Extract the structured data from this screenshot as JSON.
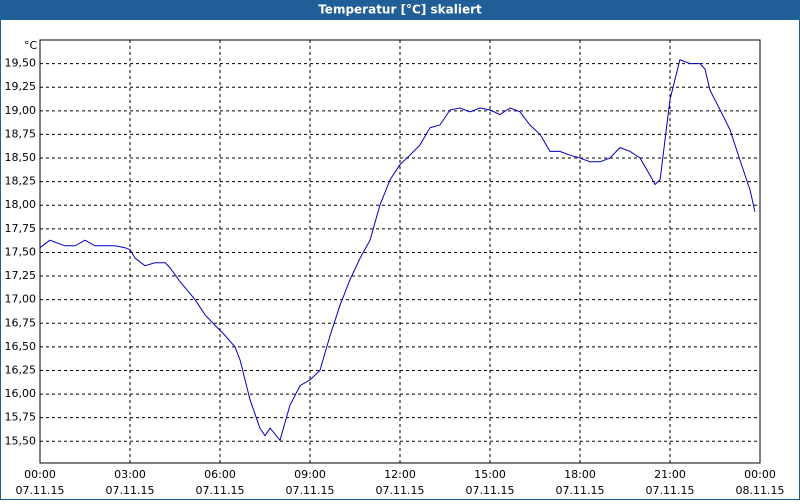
{
  "window": {
    "title": "Temperatur [°C] skaliert"
  },
  "chart_data": {
    "type": "line",
    "y_unit": "°C",
    "x": [
      0,
      0.33,
      0.5,
      0.83,
      1.17,
      1.5,
      1.83,
      2.17,
      2.5,
      2.83,
      3,
      3.17,
      3.5,
      3.83,
      4.17,
      4.33,
      4.67,
      5.17,
      5.5,
      5.83,
      6.17,
      6.5,
      6.67,
      7,
      7.33,
      7.5,
      7.67,
      8,
      8.33,
      8.67,
      9,
      9.33,
      9.67,
      10,
      10.33,
      10.67,
      11,
      11.33,
      11.67,
      12,
      12.33,
      12.67,
      13,
      13.33,
      13.67,
      14,
      14.33,
      14.67,
      15,
      15.33,
      15.67,
      16,
      16.33,
      16.67,
      17,
      17.33,
      17.67,
      18,
      18.33,
      18.67,
      19,
      19.33,
      19.67,
      20,
      20.33,
      20.5,
      20.67,
      21,
      21.33,
      21.67,
      22,
      22.17,
      22.33,
      22.67,
      23,
      23.33,
      23.67,
      23.83
    ],
    "series": [
      {
        "color": "#0000c0",
        "values": [
          17.55,
          17.63,
          17.61,
          17.57,
          17.57,
          17.63,
          17.57,
          17.57,
          17.57,
          17.55,
          17.53,
          17.44,
          17.36,
          17.39,
          17.39,
          17.34,
          17.19,
          17.0,
          16.84,
          16.73,
          16.62,
          16.5,
          16.36,
          15.94,
          15.64,
          15.56,
          15.64,
          15.51,
          15.88,
          16.09,
          16.15,
          16.25,
          16.62,
          16.94,
          17.21,
          17.44,
          17.63,
          18.0,
          18.27,
          18.43,
          18.53,
          18.64,
          18.82,
          18.85,
          19.01,
          19.03,
          18.99,
          19.03,
          19.01,
          18.96,
          19.03,
          18.99,
          18.85,
          18.75,
          18.57,
          18.57,
          18.53,
          18.5,
          18.46,
          18.46,
          18.5,
          18.61,
          18.57,
          18.5,
          18.32,
          18.22,
          18.27,
          19.12,
          19.54,
          19.5,
          19.5,
          19.44,
          19.22,
          19.01,
          18.8,
          18.48,
          18.16,
          17.93
        ]
      }
    ],
    "xlim": [
      0,
      24
    ],
    "xticks": [
      {
        "value": 0,
        "label": "00:00",
        "sublabel": "07.11.15"
      },
      {
        "value": 3,
        "label": "03:00",
        "sublabel": "07.11.15"
      },
      {
        "value": 6,
        "label": "06:00",
        "sublabel": "07.11.15"
      },
      {
        "value": 9,
        "label": "09:00",
        "sublabel": "07.11.15"
      },
      {
        "value": 12,
        "label": "12:00",
        "sublabel": "07.11.15"
      },
      {
        "value": 15,
        "label": "15:00",
        "sublabel": "07.11.15"
      },
      {
        "value": 18,
        "label": "18:00",
        "sublabel": "07.11.15"
      },
      {
        "value": 21,
        "label": "21:00",
        "sublabel": "07.11.15"
      },
      {
        "value": 24,
        "label": "00:00",
        "sublabel": "08.11.15"
      }
    ],
    "ylim": [
      15.27,
      19.75
    ],
    "yticks": [
      {
        "value": 15.5,
        "label": "15,50"
      },
      {
        "value": 15.75,
        "label": "15,75"
      },
      {
        "value": 16,
        "label": "16,00"
      },
      {
        "value": 16.25,
        "label": "16,25"
      },
      {
        "value": 16.5,
        "label": "16,50"
      },
      {
        "value": 16.75,
        "label": "16,75"
      },
      {
        "value": 17,
        "label": "17,00"
      },
      {
        "value": 17.25,
        "label": "17,25"
      },
      {
        "value": 17.5,
        "label": "17,50"
      },
      {
        "value": 17.75,
        "label": "17,75"
      },
      {
        "value": 18,
        "label": "18,00"
      },
      {
        "value": 18.25,
        "label": "18,25"
      },
      {
        "value": 18.5,
        "label": "18,50"
      },
      {
        "value": 18.75,
        "label": "18,75"
      },
      {
        "value": 19,
        "label": "19,00"
      },
      {
        "value": 19.25,
        "label": "19,25"
      },
      {
        "value": 19.5,
        "label": "19,50"
      }
    ],
    "grid": true
  }
}
